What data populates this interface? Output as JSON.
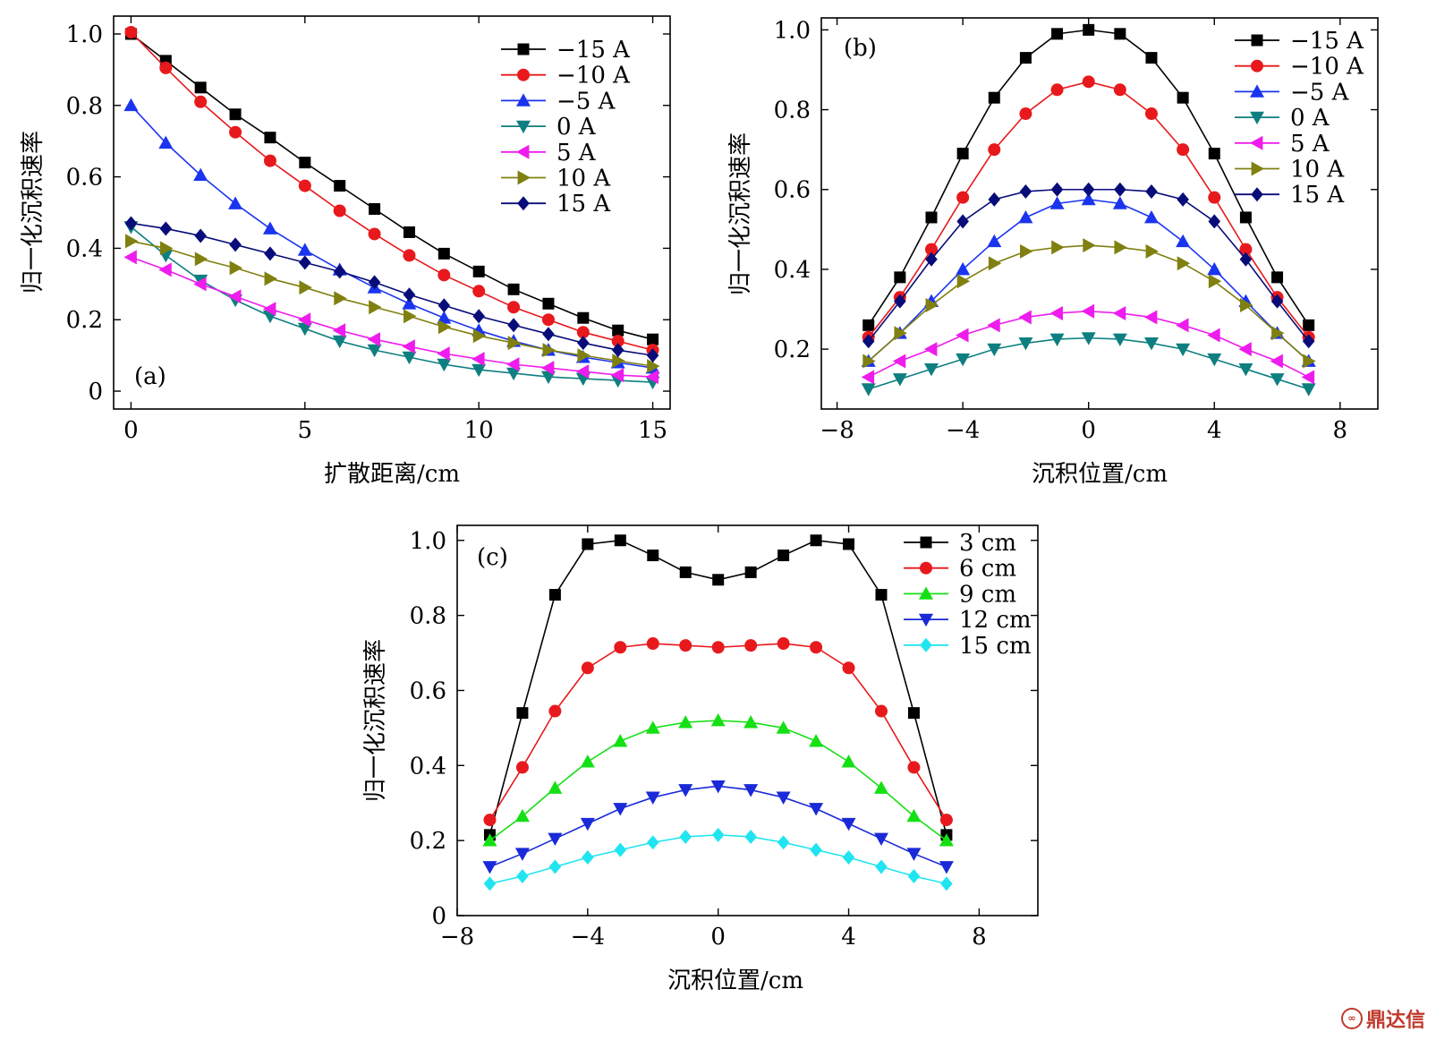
{
  "chart_data": [
    {
      "id": "a",
      "type": "line",
      "panel_label": "(a)",
      "xlabel": "扩散距离/cm",
      "ylabel": "归一化沉积速率",
      "xlim": [
        -0.5,
        15.5
      ],
      "ylim": [
        -0.05,
        1.05
      ],
      "xticks": [
        0,
        5,
        10,
        15
      ],
      "xtick_labels": [
        "0",
        "5",
        "10",
        "15"
      ],
      "yticks": [
        0,
        0.2,
        0.4,
        0.6,
        0.8,
        1.0
      ],
      "ytick_labels": [
        "0",
        "0.2",
        "0.4",
        "0.6",
        "0.8",
        "1.0"
      ],
      "legend_position": "top-right",
      "x": [
        0,
        1,
        2,
        3,
        4,
        5,
        6,
        7,
        8,
        9,
        10,
        11,
        12,
        13,
        14,
        15
      ],
      "series": [
        {
          "name": "−15 A",
          "color": "#000000",
          "marker": "square",
          "values": [
            1.0,
            0.925,
            0.85,
            0.775,
            0.71,
            0.64,
            0.575,
            0.51,
            0.445,
            0.385,
            0.335,
            0.285,
            0.245,
            0.205,
            0.17,
            0.145
          ]
        },
        {
          "name": "−10 A",
          "color": "#e8191c",
          "marker": "circle",
          "values": [
            1.005,
            0.905,
            0.81,
            0.725,
            0.645,
            0.575,
            0.505,
            0.44,
            0.38,
            0.325,
            0.28,
            0.235,
            0.2,
            0.165,
            0.14,
            0.115
          ]
        },
        {
          "name": "−5 A",
          "color": "#1a34f0",
          "marker": "triangle-up",
          "values": [
            0.8,
            0.695,
            0.605,
            0.525,
            0.455,
            0.395,
            0.34,
            0.29,
            0.245,
            0.205,
            0.17,
            0.14,
            0.115,
            0.095,
            0.08,
            0.065
          ]
        },
        {
          "name": "0 A",
          "color": "#0e7f80",
          "marker": "triangle-down",
          "values": [
            0.46,
            0.38,
            0.31,
            0.255,
            0.21,
            0.175,
            0.14,
            0.115,
            0.095,
            0.075,
            0.06,
            0.05,
            0.04,
            0.035,
            0.03,
            0.025
          ]
        },
        {
          "name": "5 A",
          "color": "#ee1ced",
          "marker": "triangle-left",
          "values": [
            0.375,
            0.34,
            0.3,
            0.265,
            0.23,
            0.2,
            0.17,
            0.145,
            0.125,
            0.105,
            0.09,
            0.075,
            0.065,
            0.055,
            0.045,
            0.04
          ]
        },
        {
          "name": "10 A",
          "color": "#808010",
          "marker": "triangle-right",
          "values": [
            0.42,
            0.4,
            0.37,
            0.345,
            0.315,
            0.29,
            0.26,
            0.235,
            0.21,
            0.18,
            0.155,
            0.135,
            0.115,
            0.1,
            0.085,
            0.07
          ]
        },
        {
          "name": "15 A",
          "color": "#080c78",
          "marker": "diamond",
          "values": [
            0.47,
            0.455,
            0.435,
            0.41,
            0.385,
            0.36,
            0.335,
            0.305,
            0.27,
            0.24,
            0.21,
            0.185,
            0.16,
            0.135,
            0.115,
            0.1
          ]
        }
      ]
    },
    {
      "id": "b",
      "type": "line",
      "panel_label": "(b)",
      "xlabel": "沉积位置/cm",
      "ylabel": "归一化沉积速率",
      "xlim": [
        -8.5,
        9.2
      ],
      "ylim": [
        0.05,
        1.03
      ],
      "xticks": [
        -8,
        -4,
        0,
        4,
        8
      ],
      "xtick_labels": [
        "−8",
        "−4",
        "0",
        "4",
        "8"
      ],
      "yticks": [
        0.2,
        0.4,
        0.6,
        0.8,
        1.0
      ],
      "ytick_labels": [
        "0.2",
        "0.4",
        "0.6",
        "0.8",
        "1.0"
      ],
      "legend_position": "top-right",
      "x": [
        -7,
        -6,
        -5,
        -4,
        -3,
        -2,
        -1,
        0,
        1,
        2,
        3,
        4,
        5,
        6,
        7
      ],
      "series": [
        {
          "name": "−15 A",
          "color": "#000000",
          "marker": "square",
          "values": [
            0.26,
            0.38,
            0.53,
            0.69,
            0.83,
            0.93,
            0.99,
            1.0,
            0.99,
            0.93,
            0.83,
            0.69,
            0.53,
            0.38,
            0.26
          ]
        },
        {
          "name": "−10 A",
          "color": "#e8191c",
          "marker": "circle",
          "values": [
            0.23,
            0.33,
            0.45,
            0.58,
            0.7,
            0.79,
            0.85,
            0.87,
            0.85,
            0.79,
            0.7,
            0.58,
            0.45,
            0.33,
            0.23
          ]
        },
        {
          "name": "−5 A",
          "color": "#1a34f0",
          "marker": "triangle-up",
          "values": [
            0.17,
            0.24,
            0.32,
            0.4,
            0.47,
            0.53,
            0.565,
            0.575,
            0.565,
            0.53,
            0.47,
            0.4,
            0.32,
            0.24,
            0.17
          ]
        },
        {
          "name": "0 A",
          "color": "#0e7f80",
          "marker": "triangle-down",
          "values": [
            0.1,
            0.125,
            0.15,
            0.175,
            0.2,
            0.215,
            0.225,
            0.228,
            0.225,
            0.215,
            0.2,
            0.175,
            0.15,
            0.125,
            0.1
          ]
        },
        {
          "name": "5 A",
          "color": "#ee1ced",
          "marker": "triangle-left",
          "values": [
            0.13,
            0.17,
            0.2,
            0.235,
            0.26,
            0.28,
            0.29,
            0.295,
            0.29,
            0.28,
            0.26,
            0.235,
            0.2,
            0.17,
            0.13
          ]
        },
        {
          "name": "10 A",
          "color": "#808010",
          "marker": "triangle-right",
          "values": [
            0.17,
            0.24,
            0.31,
            0.37,
            0.415,
            0.445,
            0.455,
            0.46,
            0.455,
            0.445,
            0.415,
            0.37,
            0.31,
            0.24,
            0.17
          ]
        },
        {
          "name": "15 A",
          "color": "#080c78",
          "marker": "diamond",
          "values": [
            0.22,
            0.32,
            0.425,
            0.52,
            0.575,
            0.595,
            0.6,
            0.6,
            0.6,
            0.595,
            0.575,
            0.52,
            0.425,
            0.32,
            0.22
          ]
        }
      ]
    },
    {
      "id": "c",
      "type": "line",
      "panel_label": "(c)",
      "xlabel": "沉积位置/cm",
      "ylabel": "归一化沉积速率",
      "xlim": [
        -8,
        9.8
      ],
      "ylim": [
        0,
        1.04
      ],
      "xticks": [
        -8,
        -4,
        0,
        4,
        8
      ],
      "xtick_labels": [
        "−8",
        "−4",
        "0",
        "4",
        "8"
      ],
      "yticks": [
        0,
        0.2,
        0.4,
        0.6,
        0.8,
        1.0
      ],
      "ytick_labels": [
        "0",
        "0.2",
        "0.4",
        "0.6",
        "0.8",
        "1.0"
      ],
      "legend_position": "top-right",
      "x": [
        -7,
        -6,
        -5,
        -4,
        -3,
        -2,
        -1,
        0,
        1,
        2,
        3,
        4,
        5,
        6,
        7
      ],
      "series": [
        {
          "name": "3 cm",
          "color": "#000000",
          "marker": "square",
          "values": [
            0.215,
            0.54,
            0.855,
            0.99,
            1.0,
            0.96,
            0.915,
            0.895,
            0.915,
            0.96,
            1.0,
            0.99,
            0.855,
            0.54,
            0.215
          ]
        },
        {
          "name": "6 cm",
          "color": "#e8191c",
          "marker": "circle",
          "values": [
            0.255,
            0.395,
            0.545,
            0.66,
            0.715,
            0.725,
            0.72,
            0.715,
            0.72,
            0.725,
            0.715,
            0.66,
            0.545,
            0.395,
            0.255
          ]
        },
        {
          "name": "9 cm",
          "color": "#14e014",
          "marker": "triangle-up",
          "values": [
            0.2,
            0.265,
            0.34,
            0.41,
            0.465,
            0.5,
            0.515,
            0.52,
            0.515,
            0.5,
            0.465,
            0.41,
            0.34,
            0.265,
            0.2
          ]
        },
        {
          "name": "12 cm",
          "color": "#1a2ad8",
          "marker": "triangle-down",
          "values": [
            0.13,
            0.165,
            0.205,
            0.245,
            0.285,
            0.315,
            0.335,
            0.345,
            0.335,
            0.315,
            0.285,
            0.245,
            0.205,
            0.165,
            0.13
          ]
        },
        {
          "name": "15 cm",
          "color": "#20e5f0",
          "marker": "diamond",
          "values": [
            0.085,
            0.105,
            0.13,
            0.155,
            0.175,
            0.195,
            0.21,
            0.215,
            0.21,
            0.195,
            0.175,
            0.155,
            0.13,
            0.105,
            0.085
          ]
        }
      ]
    }
  ],
  "watermark": {
    "text": "鼎达信",
    "icon": "logo-icon"
  }
}
